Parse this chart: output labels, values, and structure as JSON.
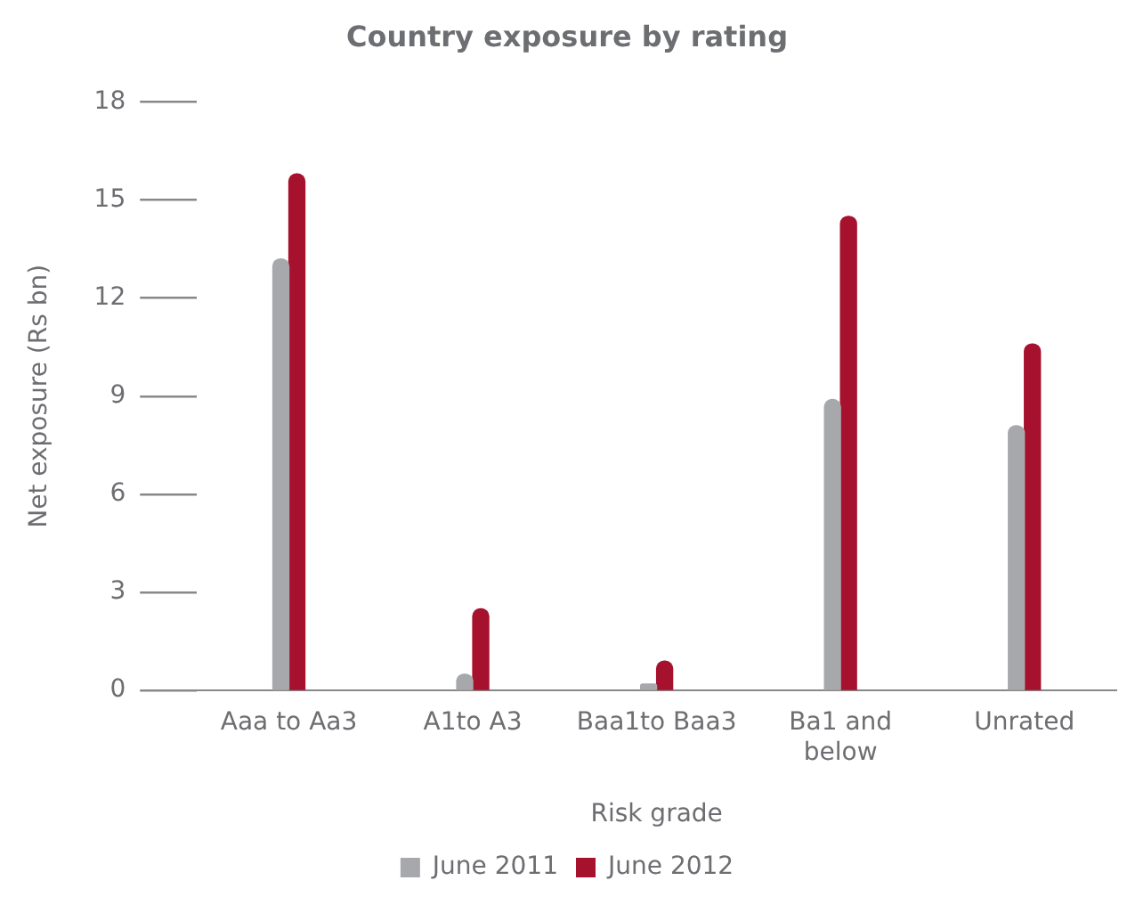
{
  "chart_data": {
    "type": "bar",
    "title": "Country exposure by rating",
    "xlabel": "Risk grade",
    "ylabel": "Net exposure (Rs bn)",
    "categories": [
      "Aaa to Aa3",
      "A1to A3",
      "Baa1to Baa3",
      "Ba1 and below",
      "Unrated"
    ],
    "series": [
      {
        "name": "June 2011",
        "color": "#a7a8ab",
        "values": [
          13.2,
          0.5,
          0.2,
          8.9,
          8.1
        ]
      },
      {
        "name": "June 2012",
        "color": "#a6112e",
        "values": [
          15.8,
          2.5,
          0.9,
          14.5,
          10.6
        ]
      }
    ],
    "ylim": [
      0,
      18
    ],
    "yticks": [
      0,
      3,
      6,
      9,
      12,
      15,
      18
    ],
    "grid": false,
    "legend": "bottom"
  }
}
